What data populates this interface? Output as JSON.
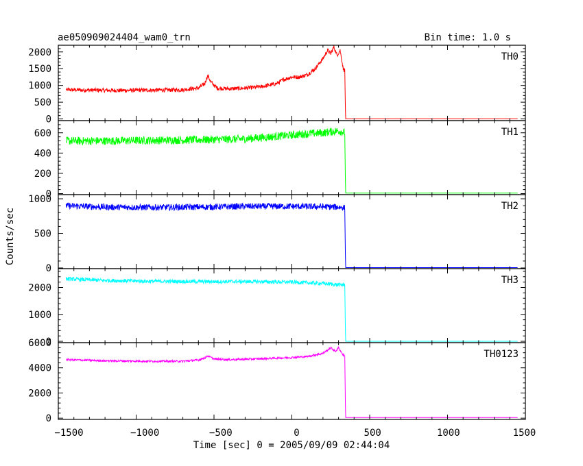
{
  "header": {
    "title": "ae050909024404_wam0_trn",
    "bin_time": "Bin time: 1.0 s"
  },
  "axes": {
    "xlabel": "Time [sec] 0 = 2005/09/09 02:44:04",
    "ylabel": "Counts/sec",
    "xticks": [
      "−1500",
      "−1000",
      "−500",
      "0",
      "500",
      "1000",
      "1500"
    ]
  },
  "chart_data": {
    "type": "line",
    "xlim": [
      -1500,
      1500
    ],
    "grid": false,
    "legend": "none; panel names printed at top-right of each panel",
    "panels": [
      {
        "name": "TH0",
        "color": "#ff0000",
        "ylim": [
          -50,
          2200
        ],
        "ytick_values": [
          0,
          500,
          1000,
          1500,
          2000
        ],
        "ytick_labels": [
          "0",
          "500",
          "1000",
          "1500",
          "2000"
        ],
        "x": [
          -1450,
          -1300,
          -1100,
          -900,
          -700,
          -600,
          -560,
          -540,
          -520,
          -480,
          -400,
          -300,
          -200,
          -100,
          -50,
          0,
          50,
          100,
          150,
          200,
          230,
          250,
          270,
          290,
          310,
          330,
          340,
          345,
          400,
          1450
        ],
        "y": [
          870,
          860,
          850,
          860,
          870,
          920,
          1050,
          1300,
          1100,
          920,
          900,
          920,
          960,
          1050,
          1180,
          1250,
          1250,
          1320,
          1500,
          1800,
          2050,
          1950,
          2150,
          1900,
          2050,
          1500,
          1450,
          0,
          0,
          0
        ],
        "noise": 60
      },
      {
        "name": "TH1",
        "color": "#00ff00",
        "ylim": [
          -10,
          720
        ],
        "ytick_values": [
          0,
          200,
          400,
          600
        ],
        "ytick_labels": [
          "0",
          "200",
          "400",
          "600"
        ],
        "x": [
          -1450,
          -1200,
          -900,
          -600,
          -300,
          -100,
          100,
          200,
          300,
          340,
          345,
          400,
          1450
        ],
        "y": [
          520,
          520,
          525,
          530,
          540,
          565,
          590,
          600,
          620,
          600,
          5,
          5,
          5
        ],
        "noise": 40
      },
      {
        "name": "TH2",
        "color": "#0000ff",
        "ylim": [
          -10,
          1060
        ],
        "ytick_values": [
          0,
          500,
          1000
        ],
        "ytick_labels": [
          "0",
          "500",
          "1000"
        ],
        "x": [
          -1450,
          -1200,
          -900,
          -600,
          -300,
          0,
          200,
          300,
          340,
          345,
          400,
          1450
        ],
        "y": [
          900,
          880,
          875,
          880,
          890,
          890,
          885,
          880,
          870,
          5,
          5,
          5
        ],
        "noise": 45
      },
      {
        "name": "TH3",
        "color": "#00ffff",
        "ylim": [
          -50,
          2700
        ],
        "ytick_values": [
          0,
          1000,
          2000
        ],
        "ytick_labels": [
          "0",
          "1000",
          "2000"
        ],
        "x": [
          -1450,
          -1200,
          -900,
          -600,
          -300,
          0,
          200,
          300,
          340,
          345,
          400,
          1450
        ],
        "y": [
          2320,
          2260,
          2230,
          2220,
          2220,
          2200,
          2150,
          2100,
          2100,
          0,
          0,
          0
        ],
        "noise": 70
      },
      {
        "name": "TH0123",
        "color": "#ff00ff",
        "ylim": [
          -100,
          6000
        ],
        "ytick_values": [
          0,
          2000,
          4000,
          6000
        ],
        "ytick_labels": [
          "0",
          "2000",
          "4000",
          "6000"
        ],
        "x": [
          -1450,
          -1200,
          -900,
          -700,
          -600,
          -560,
          -540,
          -500,
          -400,
          -200,
          0,
          100,
          200,
          250,
          280,
          300,
          330,
          340,
          345,
          400,
          1450
        ],
        "y": [
          4650,
          4560,
          4520,
          4520,
          4620,
          4780,
          4950,
          4700,
          4650,
          4720,
          4820,
          4900,
          5150,
          5600,
          5300,
          5600,
          5000,
          5000,
          50,
          50,
          50
        ],
        "noise": 80
      }
    ]
  }
}
